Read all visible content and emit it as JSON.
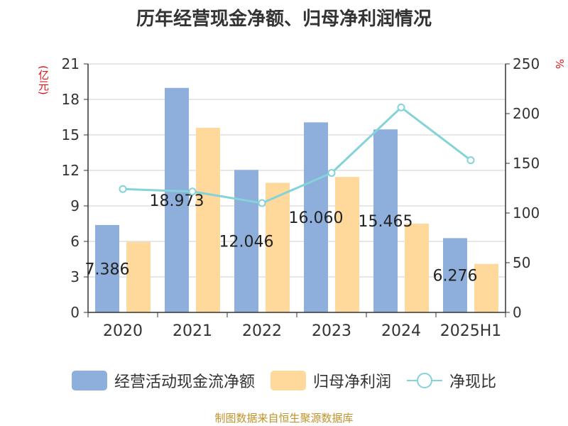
{
  "chart_data": {
    "type": "bar",
    "title": "历年经营现金净额、归母净利润情况",
    "categories": [
      "2020",
      "2021",
      "2022",
      "2023",
      "2024",
      "2025H1"
    ],
    "series": [
      {
        "name": "经营活动现金流净额",
        "type": "bar",
        "axis": "left",
        "color": "#8eaedb",
        "values": [
          7.386,
          18.973,
          12.046,
          16.06,
          15.465,
          6.276
        ],
        "labels": [
          "7.386",
          "18.973",
          "12.046",
          "16.060",
          "15.465",
          "6.276"
        ]
      },
      {
        "name": "归母净利润",
        "type": "bar",
        "axis": "left",
        "color": "#fed99b",
        "values": [
          5.95,
          15.6,
          10.95,
          11.45,
          7.5,
          4.1
        ]
      },
      {
        "name": "净现比",
        "type": "line",
        "axis": "right",
        "color": "#83d3d8",
        "values": [
          124.1,
          121.6,
          110.0,
          140.3,
          206.2,
          153.1
        ]
      }
    ],
    "yleft": {
      "unit": "(亿元)",
      "min": 0,
      "max": 21,
      "ticks": [
        0,
        3,
        6,
        9,
        12,
        15,
        18,
        21
      ]
    },
    "yright": {
      "unit": "%",
      "min": 0,
      "max": 250,
      "ticks": [
        0,
        50,
        100,
        150,
        200,
        250
      ]
    },
    "grid": true,
    "legend_position": "bottom"
  },
  "source_note": "制图数据来自恒生聚源数据库"
}
